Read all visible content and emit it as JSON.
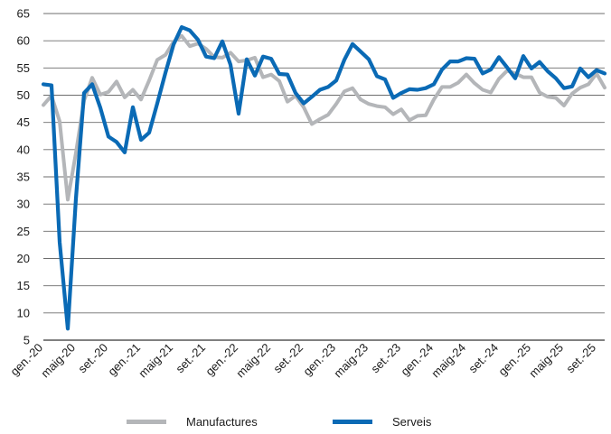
{
  "chart_data": {
    "type": "line",
    "title": "",
    "xlabel": "",
    "ylabel": "",
    "ylim": [
      5,
      65
    ],
    "yticks": [
      5,
      10,
      15,
      20,
      25,
      30,
      35,
      40,
      45,
      50,
      55,
      60,
      65
    ],
    "grid": true,
    "legend_position": "bottom",
    "x_ticks": [
      "gen.-20",
      "maig-20",
      "set.-20",
      "gen.-21",
      "maig-21",
      "set.-21",
      "gen.-22",
      "maig-22",
      "set.-22",
      "gen.-23",
      "maig-23",
      "set.-23",
      "gen.-24",
      "maig-24",
      "set.-24",
      "gen.-25",
      "maig-25",
      "set.-25"
    ],
    "x_tick_month_index": [
      0,
      4,
      8,
      12,
      16,
      20,
      24,
      28,
      32,
      36,
      40,
      44,
      48,
      52,
      56,
      60,
      64,
      68
    ],
    "series": [
      {
        "name": "Manufactures",
        "color": "#b4b6b9",
        "values": [
          48.2,
          49.9,
          45.2,
          30.8,
          39.4,
          49.0,
          53.2,
          50.1,
          50.6,
          52.5,
          49.6,
          51.0,
          49.2,
          52.7,
          56.5,
          57.4,
          59.8,
          60.9,
          59.0,
          59.5,
          58.5,
          57.0,
          56.9,
          57.8,
          56.2,
          56.4,
          56.9,
          53.3,
          53.8,
          52.6,
          48.8,
          49.9,
          47.8,
          44.7,
          45.6,
          46.4,
          48.4,
          50.7,
          51.3,
          49.2,
          48.4,
          48.0,
          47.8,
          46.5,
          47.4,
          45.4,
          46.2,
          46.3,
          49.2,
          51.5,
          51.5,
          52.3,
          53.8,
          52.2,
          51.0,
          50.5,
          53.0,
          54.5,
          54.0,
          53.3,
          53.3,
          50.5,
          49.7,
          49.5,
          48.1,
          50.3,
          51.4,
          52.0,
          54.0,
          51.4
        ]
      },
      {
        "name": "Serveis",
        "color": "#0a6ab5",
        "values": [
          52.0,
          51.8,
          23.0,
          7.1,
          31.0,
          50.4,
          52.0,
          47.7,
          42.4,
          41.4,
          39.5,
          47.8,
          41.8,
          43.1,
          48.5,
          54.1,
          59.3,
          62.5,
          61.9,
          60.2,
          57.1,
          56.8,
          59.9,
          55.6,
          46.6,
          56.6,
          53.6,
          57.1,
          56.7,
          53.9,
          53.8,
          50.4,
          48.5,
          49.7,
          51.0,
          51.5,
          52.7,
          56.5,
          59.4,
          58.0,
          56.6,
          53.5,
          52.9,
          49.5,
          50.4,
          51.1,
          51.0,
          51.3,
          52.0,
          54.7,
          56.2,
          56.2,
          56.8,
          56.7,
          54.0,
          54.7,
          57.0,
          55.1,
          53.1,
          57.2,
          54.9,
          56.1,
          54.4,
          53.1,
          51.3,
          51.6,
          54.9,
          53.3,
          54.6,
          54.0
        ]
      }
    ]
  },
  "legend": {
    "items": [
      {
        "label": "Manufactures",
        "color": "#b4b6b9"
      },
      {
        "label": "Serveis",
        "color": "#0a6ab5"
      }
    ]
  }
}
